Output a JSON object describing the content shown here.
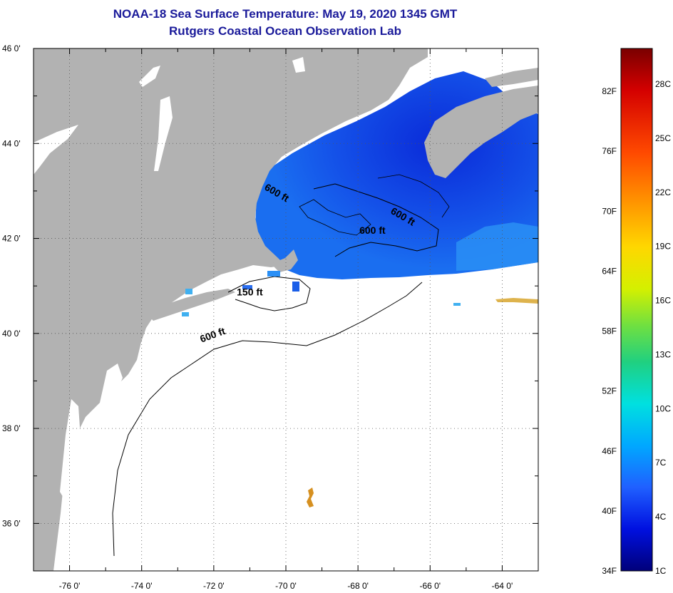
{
  "title": {
    "line1": "NOAA-18 Sea Surface Temperature:  May 19, 2020 1345 GMT",
    "line2": "Rutgers Coastal Ocean Observation Lab"
  },
  "map": {
    "lon_range": [
      -77,
      -63
    ],
    "lat_range": [
      35,
      46
    ],
    "lon_ticks": [
      {
        "lon": -76,
        "label": "-76 0'"
      },
      {
        "lon": -74,
        "label": "-74 0'"
      },
      {
        "lon": -72,
        "label": "-72 0'"
      },
      {
        "lon": -70,
        "label": "-70 0'"
      },
      {
        "lon": -68,
        "label": "-68 0'"
      },
      {
        "lon": -66,
        "label": "-66 0'"
      },
      {
        "lon": -64,
        "label": "-64 0'"
      }
    ],
    "lat_ticks": [
      {
        "lat": 46,
        "label": "46 0'"
      },
      {
        "lat": 44,
        "label": "44 0'"
      },
      {
        "lat": 42,
        "label": "42 0'"
      },
      {
        "lat": 40,
        "label": "40 0'"
      },
      {
        "lat": 38,
        "label": "38 0'"
      },
      {
        "lat": 36,
        "label": "36 0'"
      }
    ],
    "contour_labels": [
      {
        "text": "600 ft",
        "lon": -70.3,
        "lat": 42.9,
        "rotate": 30
      },
      {
        "text": "600 ft",
        "lon": -66.8,
        "lat": 42.4,
        "rotate": 30
      },
      {
        "text": "600 ft",
        "lon": -67.6,
        "lat": 42.1,
        "rotate": 0
      },
      {
        "text": "150 ft",
        "lon": -71.0,
        "lat": 40.8,
        "rotate": 0
      },
      {
        "text": "600 ft",
        "lon": -72.0,
        "lat": 39.9,
        "rotate": -20
      }
    ],
    "colors": {
      "land": "#b2b2b2",
      "no_data": "#ffffff",
      "sst_cold": "#0a2ad8",
      "sst_mid": "#1a6ef0",
      "sst_light": "#2a8ff5",
      "sst_warm_spot": "#d69020"
    }
  },
  "colorbar": {
    "fahrenheit_labels": [
      "82F",
      "76F",
      "70F",
      "64F",
      "58F",
      "52F",
      "46F",
      "40F",
      "34F"
    ],
    "celsius_labels": [
      "28C",
      "25C",
      "22C",
      "19C",
      "16C",
      "13C",
      "10C",
      "7C",
      "4C",
      "1C"
    ],
    "gradient_stops": [
      {
        "offset": 0,
        "color": "#7a0000"
      },
      {
        "offset": 0.08,
        "color": "#d40000"
      },
      {
        "offset": 0.2,
        "color": "#ff4a00"
      },
      {
        "offset": 0.3,
        "color": "#ff9900"
      },
      {
        "offset": 0.38,
        "color": "#ffd700"
      },
      {
        "offset": 0.46,
        "color": "#d4f000"
      },
      {
        "offset": 0.53,
        "color": "#70e040"
      },
      {
        "offset": 0.6,
        "color": "#20d080"
      },
      {
        "offset": 0.68,
        "color": "#00e0e0"
      },
      {
        "offset": 0.76,
        "color": "#00a8ff"
      },
      {
        "offset": 0.84,
        "color": "#2060ff"
      },
      {
        "offset": 0.92,
        "color": "#0010e0"
      },
      {
        "offset": 1,
        "color": "#00007a"
      }
    ]
  }
}
